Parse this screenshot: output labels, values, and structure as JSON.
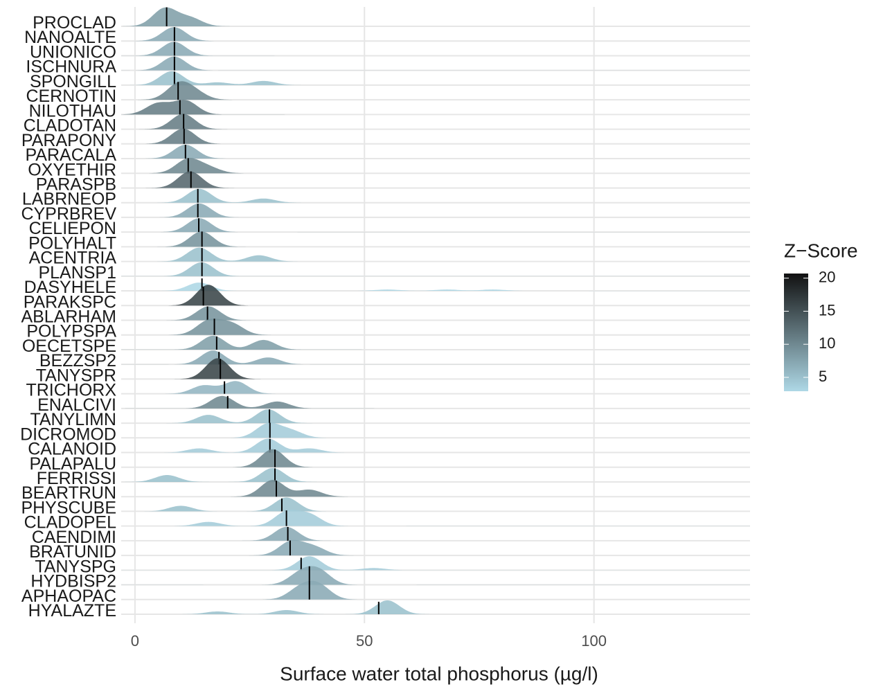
{
  "chart_data": {
    "type": "ridgeline",
    "x_label": "Surface water total phosphorus (µg/l)",
    "xlim": [
      -3,
      134
    ],
    "xticks": [
      0,
      50,
      100
    ],
    "grid": true,
    "legend": {
      "title": "Z−Score",
      "zlim": [
        2.9,
        20.7
      ],
      "ticks": [
        5,
        10,
        15,
        20
      ],
      "low_color": "#aed8e6",
      "high_color": "#111111"
    },
    "rows": [
      {
        "name": "PROCLAD",
        "median": 6.9,
        "z": 8,
        "peaks": [
          [
            6.5,
            1.3
          ],
          [
            12,
            0.6
          ]
        ]
      },
      {
        "name": "NANOALTE",
        "median": 8.6,
        "z": 7,
        "peaks": [
          [
            8.5,
            1
          ]
        ]
      },
      {
        "name": "UNIONICO",
        "median": 8.6,
        "z": 7,
        "peaks": [
          [
            8.5,
            1
          ]
        ]
      },
      {
        "name": "ISCHNURA",
        "median": 8.6,
        "z": 7,
        "peaks": [
          [
            8.5,
            1
          ]
        ]
      },
      {
        "name": "SPONGILL",
        "median": 8.6,
        "z": 5,
        "peaks": [
          [
            8,
            1
          ],
          [
            18,
            0.2
          ],
          [
            28,
            0.3
          ]
        ]
      },
      {
        "name": "CERNOTIN",
        "median": 9.4,
        "z": 10,
        "peaks": [
          [
            9.5,
            1.1
          ],
          [
            13,
            0.5
          ]
        ]
      },
      {
        "name": "NILOTHAU",
        "median": 9.8,
        "z": 11,
        "peaks": [
          [
            5,
            0.8
          ],
          [
            11,
            1
          ]
        ]
      },
      {
        "name": "CLADOTAN",
        "median": 10.6,
        "z": 11,
        "peaks": [
          [
            10.5,
            1.1
          ]
        ]
      },
      {
        "name": "PARAPONY",
        "median": 10.7,
        "z": 11,
        "peaks": [
          [
            10.5,
            1.1
          ]
        ]
      },
      {
        "name": "PARACALA",
        "median": 11.0,
        "z": 7,
        "peaks": [
          [
            11,
            1
          ]
        ]
      },
      {
        "name": "OXYETHIR",
        "median": 11.6,
        "z": 10,
        "peaks": [
          [
            11.5,
            1
          ],
          [
            16,
            0.4
          ]
        ]
      },
      {
        "name": "PARASPB",
        "median": 12.2,
        "z": 13,
        "peaks": [
          [
            12,
            1.2
          ]
        ]
      },
      {
        "name": "LABRNEOP",
        "median": 13.7,
        "z": 5,
        "peaks": [
          [
            14,
            1
          ],
          [
            28,
            0.3
          ]
        ]
      },
      {
        "name": "CYPRBREV",
        "median": 13.7,
        "z": 7,
        "peaks": [
          [
            14,
            1
          ]
        ]
      },
      {
        "name": "CELIEPON",
        "median": 13.9,
        "z": 7,
        "peaks": [
          [
            14,
            1
          ]
        ]
      },
      {
        "name": "POLYHALT",
        "median": 14.6,
        "z": 9,
        "peaks": [
          [
            14.5,
            1.1
          ]
        ]
      },
      {
        "name": "ACENTRIA",
        "median": 14.6,
        "z": 5,
        "peaks": [
          [
            14,
            1
          ],
          [
            27,
            0.45
          ]
        ]
      },
      {
        "name": "PLANSP1",
        "median": 14.6,
        "z": 5,
        "peaks": [
          [
            14.5,
            1
          ]
        ]
      },
      {
        "name": "DASYHELE",
        "median": 14.6,
        "z": 3,
        "peaks": [
          [
            14,
            0.6
          ],
          [
            55,
            0.1
          ],
          [
            68,
            0.1
          ],
          [
            78,
            0.1
          ]
        ]
      },
      {
        "name": "PARAKSPC",
        "median": 14.9,
        "z": 16,
        "peaks": [
          [
            16,
            1.5
          ]
        ]
      },
      {
        "name": "ABLARHAM",
        "median": 15.8,
        "z": 9,
        "peaks": [
          [
            16,
            1
          ]
        ]
      },
      {
        "name": "POLYPSPA",
        "median": 17.3,
        "z": 9,
        "peaks": [
          [
            16,
            1
          ],
          [
            21,
            0.8
          ]
        ]
      },
      {
        "name": "OECETSPE",
        "median": 17.8,
        "z": 8,
        "peaks": [
          [
            17,
            1
          ],
          [
            28,
            0.7
          ]
        ]
      },
      {
        "name": "BEZZSP2",
        "median": 18.3,
        "z": 7,
        "peaks": [
          [
            17,
            1
          ],
          [
            29,
            0.5
          ]
        ]
      },
      {
        "name": "TANYSPR",
        "median": 18.6,
        "z": 16,
        "peaks": [
          [
            18,
            1.5
          ]
        ]
      },
      {
        "name": "TRICHORX",
        "median": 19.5,
        "z": 6,
        "peaks": [
          [
            15,
            0.6
          ],
          [
            22,
            0.9
          ]
        ]
      },
      {
        "name": "ENALCIVI",
        "median": 20.2,
        "z": 10,
        "peaks": [
          [
            19,
            0.9
          ],
          [
            31,
            0.5
          ]
        ]
      },
      {
        "name": "TANYLIMN",
        "median": 29.3,
        "z": 5,
        "peaks": [
          [
            16,
            0.6
          ],
          [
            29,
            1
          ]
        ]
      },
      {
        "name": "DICROMOD",
        "median": 29.4,
        "z": 4,
        "peaks": [
          [
            29,
            1
          ],
          [
            34,
            0.5
          ]
        ]
      },
      {
        "name": "CALANOID",
        "median": 29.4,
        "z": 4,
        "peaks": [
          [
            14,
            0.3
          ],
          [
            29,
            1
          ],
          [
            38,
            0.3
          ]
        ]
      },
      {
        "name": "PALAPALU",
        "median": 30.5,
        "z": 10,
        "peaks": [
          [
            30,
            1.3
          ]
        ]
      },
      {
        "name": "FERRISSI",
        "median": 30.5,
        "z": 5,
        "peaks": [
          [
            7,
            0.5
          ],
          [
            30,
            1
          ]
        ]
      },
      {
        "name": "BEARTRUN",
        "median": 30.8,
        "z": 10,
        "peaks": [
          [
            30,
            1.2
          ],
          [
            38,
            0.5
          ]
        ]
      },
      {
        "name": "PHYSCUBE",
        "median": 32.0,
        "z": 5,
        "peaks": [
          [
            10,
            0.4
          ],
          [
            33,
            1
          ]
        ]
      },
      {
        "name": "CLADOPEL",
        "median": 33.0,
        "z": 4,
        "peaks": [
          [
            16,
            0.3
          ],
          [
            33,
            1
          ],
          [
            38,
            0.8
          ]
        ]
      },
      {
        "name": "CAENDIMI",
        "median": 33.3,
        "z": 7,
        "peaks": [
          [
            33,
            1
          ]
        ]
      },
      {
        "name": "BRATUNID",
        "median": 33.8,
        "z": 7,
        "peaks": [
          [
            34,
            1
          ],
          [
            39,
            0.6
          ]
        ]
      },
      {
        "name": "TANYSPG",
        "median": 36.2,
        "z": 4,
        "peaks": [
          [
            38,
            1
          ],
          [
            52,
            0.15
          ]
        ]
      },
      {
        "name": "HYDBISP2",
        "median": 38.0,
        "z": 7,
        "peaks": [
          [
            36,
            0.8
          ],
          [
            40,
            1
          ]
        ]
      },
      {
        "name": "APHAOPAC",
        "median": 38.0,
        "z": 7,
        "peaks": [
          [
            36,
            0.8
          ],
          [
            40,
            1
          ]
        ]
      },
      {
        "name": "HYALAZTE",
        "median": 53.1,
        "z": 5,
        "peaks": [
          [
            18,
            0.2
          ],
          [
            33,
            0.3
          ],
          [
            55,
            1
          ]
        ]
      }
    ]
  }
}
